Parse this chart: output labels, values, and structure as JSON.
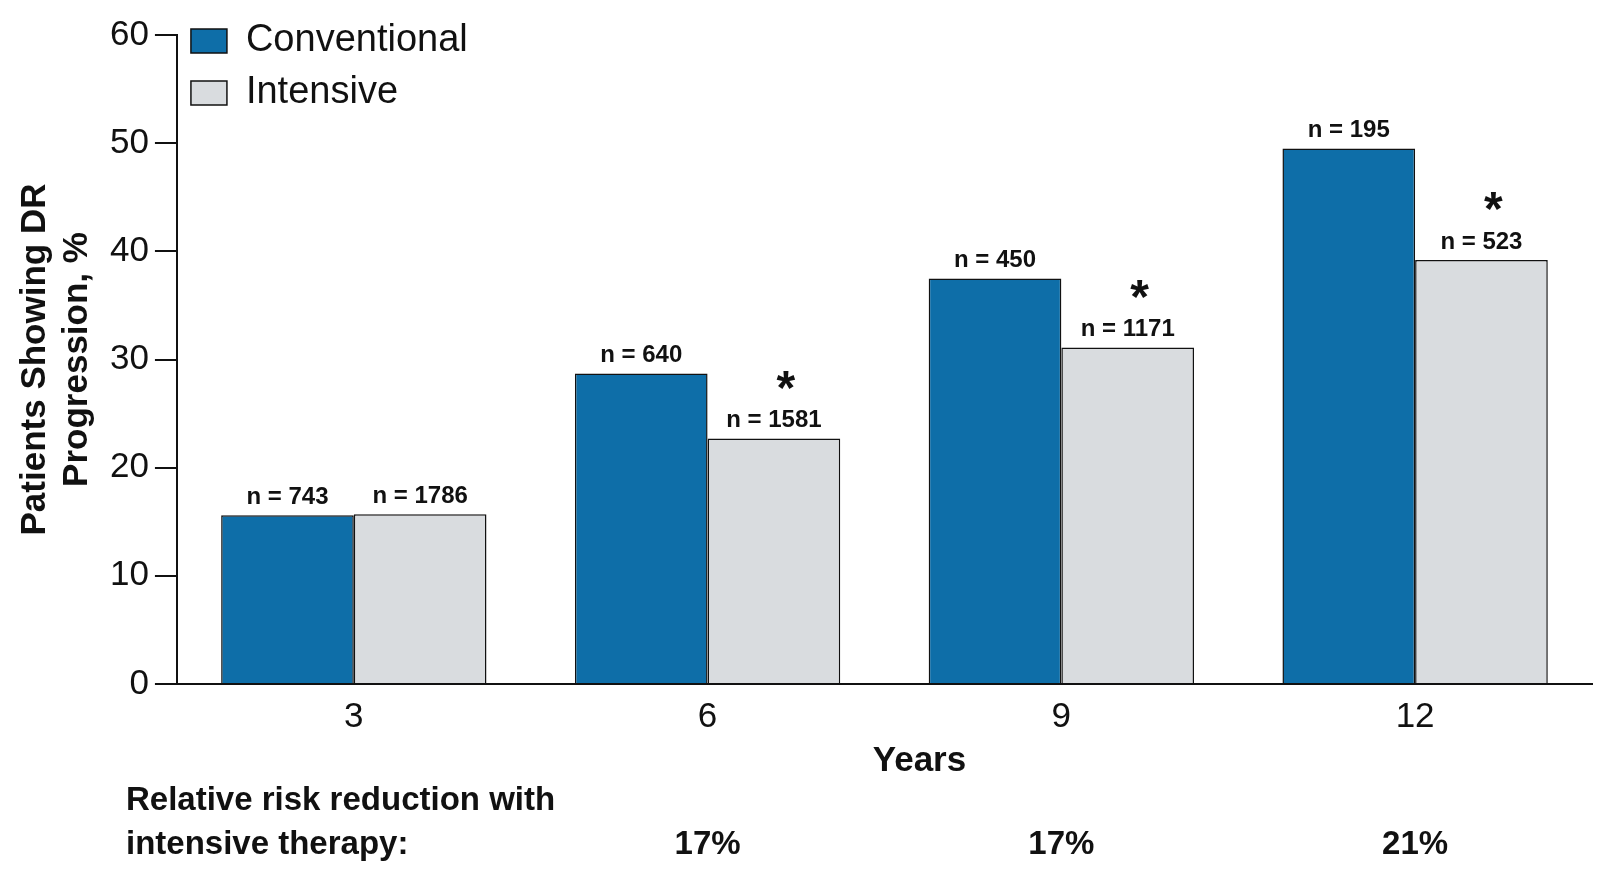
{
  "chart_data": {
    "type": "bar",
    "xlabel": "Years",
    "ylabel": "Patients Showing DR\nProgression, %",
    "categories": [
      "3",
      "6",
      "9",
      "12"
    ],
    "series": [
      {
        "name": "Conventional",
        "color": "#0e6ea8",
        "values": [
          15.6,
          28.7,
          37.5,
          49.5
        ]
      },
      {
        "name": "Intensive",
        "color": "#d9dcdf",
        "values": [
          15.7,
          22.7,
          31.1,
          39.2
        ]
      }
    ],
    "ylim": [
      0,
      60
    ],
    "yticks": [
      0,
      10,
      20,
      30,
      40,
      50,
      60
    ],
    "grid": false,
    "legend": "top left",
    "annotations": [
      {
        "text": "n = 743",
        "x": "3",
        "y": 15.6
      },
      {
        "text": "n = 1786",
        "x": "3",
        "y": 15.7
      },
      {
        "text": "n = 640",
        "x": "6",
        "y": 28.7
      },
      {
        "text": "n = 1581",
        "x": "6",
        "y": 22.7
      },
      {
        "text": "n = 450",
        "x": "9",
        "y": 37.5
      },
      {
        "text": "n = 1171",
        "x": "9",
        "y": 31.1
      },
      {
        "text": "n = 195",
        "x": "12",
        "y": 49.5
      },
      {
        "text": "n = 523",
        "x": "12",
        "y": 39.2
      },
      {
        "text": "*",
        "x": "6",
        "y": 22.7
      },
      {
        "text": "*",
        "x": "9",
        "y": 31.1
      },
      {
        "text": "*",
        "x": "12",
        "y": 39.2
      },
      "Relative risk reduction with\nintensive therapy:",
      "17%",
      "17%",
      "21%"
    ]
  }
}
